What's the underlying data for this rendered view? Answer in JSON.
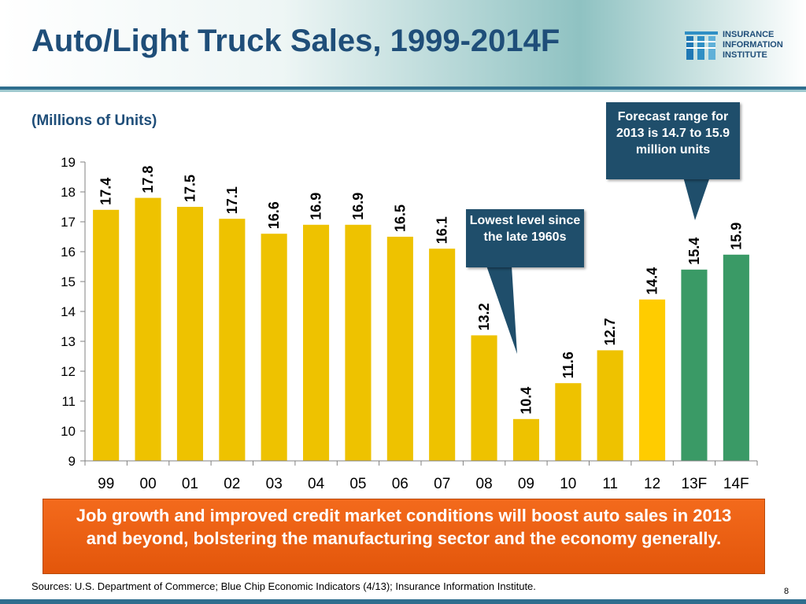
{
  "slide": {
    "title": "Auto/Light Truck Sales, 1999-2014F",
    "subtitle": "(Millions of Units)",
    "logo": {
      "line1": "INSURANCE",
      "line2": "INFORMATION",
      "line3": "INSTITUTE"
    },
    "callouts": {
      "forecast": "Forecast  range for 2013 is 14.7 to 15.9 million units",
      "lowest": "Lowest level since the late 1960s"
    },
    "banner": "Job growth and improved credit market conditions will boost auto sales in 2013 and beyond, bolstering the manufacturing sector and the economy generally.",
    "sources": "Sources: U.S. Department of Commerce; Blue Chip Economic Indicators (4/13); Insurance Information Institute.",
    "page_number": "8"
  },
  "colors": {
    "actual": "#EEC200",
    "latest": "#FFCC00",
    "forecast": "#3A9A66",
    "title": "#1F4E79",
    "callout": "#1F4E6B",
    "banner": "#E85F12"
  },
  "chart_data": {
    "type": "bar",
    "categories": [
      "99",
      "00",
      "01",
      "02",
      "03",
      "04",
      "05",
      "06",
      "07",
      "08",
      "09",
      "10",
      "11",
      "12",
      "13F",
      "14F"
    ],
    "values": [
      17.4,
      17.8,
      17.5,
      17.1,
      16.6,
      16.9,
      16.9,
      16.5,
      16.1,
      13.2,
      10.4,
      11.6,
      12.7,
      14.4,
      15.4,
      15.9
    ],
    "bar_colors": [
      "actual",
      "actual",
      "actual",
      "actual",
      "actual",
      "actual",
      "actual",
      "actual",
      "actual",
      "actual",
      "actual",
      "actual",
      "actual",
      "latest",
      "forecast",
      "forecast"
    ],
    "data_labels": [
      "17.4",
      "17.8",
      "17.5",
      "17.1",
      "16.6",
      "16.9",
      "16.9",
      "16.5",
      "16.1",
      "13.2",
      "10.4",
      "11.6",
      "12.7",
      "14.4",
      "15.4",
      "15.9"
    ],
    "ylim": [
      9,
      19
    ],
    "yticks": [
      9,
      10,
      11,
      12,
      13,
      14,
      15,
      16,
      17,
      18,
      19
    ],
    "grid": false,
    "legend": "none"
  }
}
